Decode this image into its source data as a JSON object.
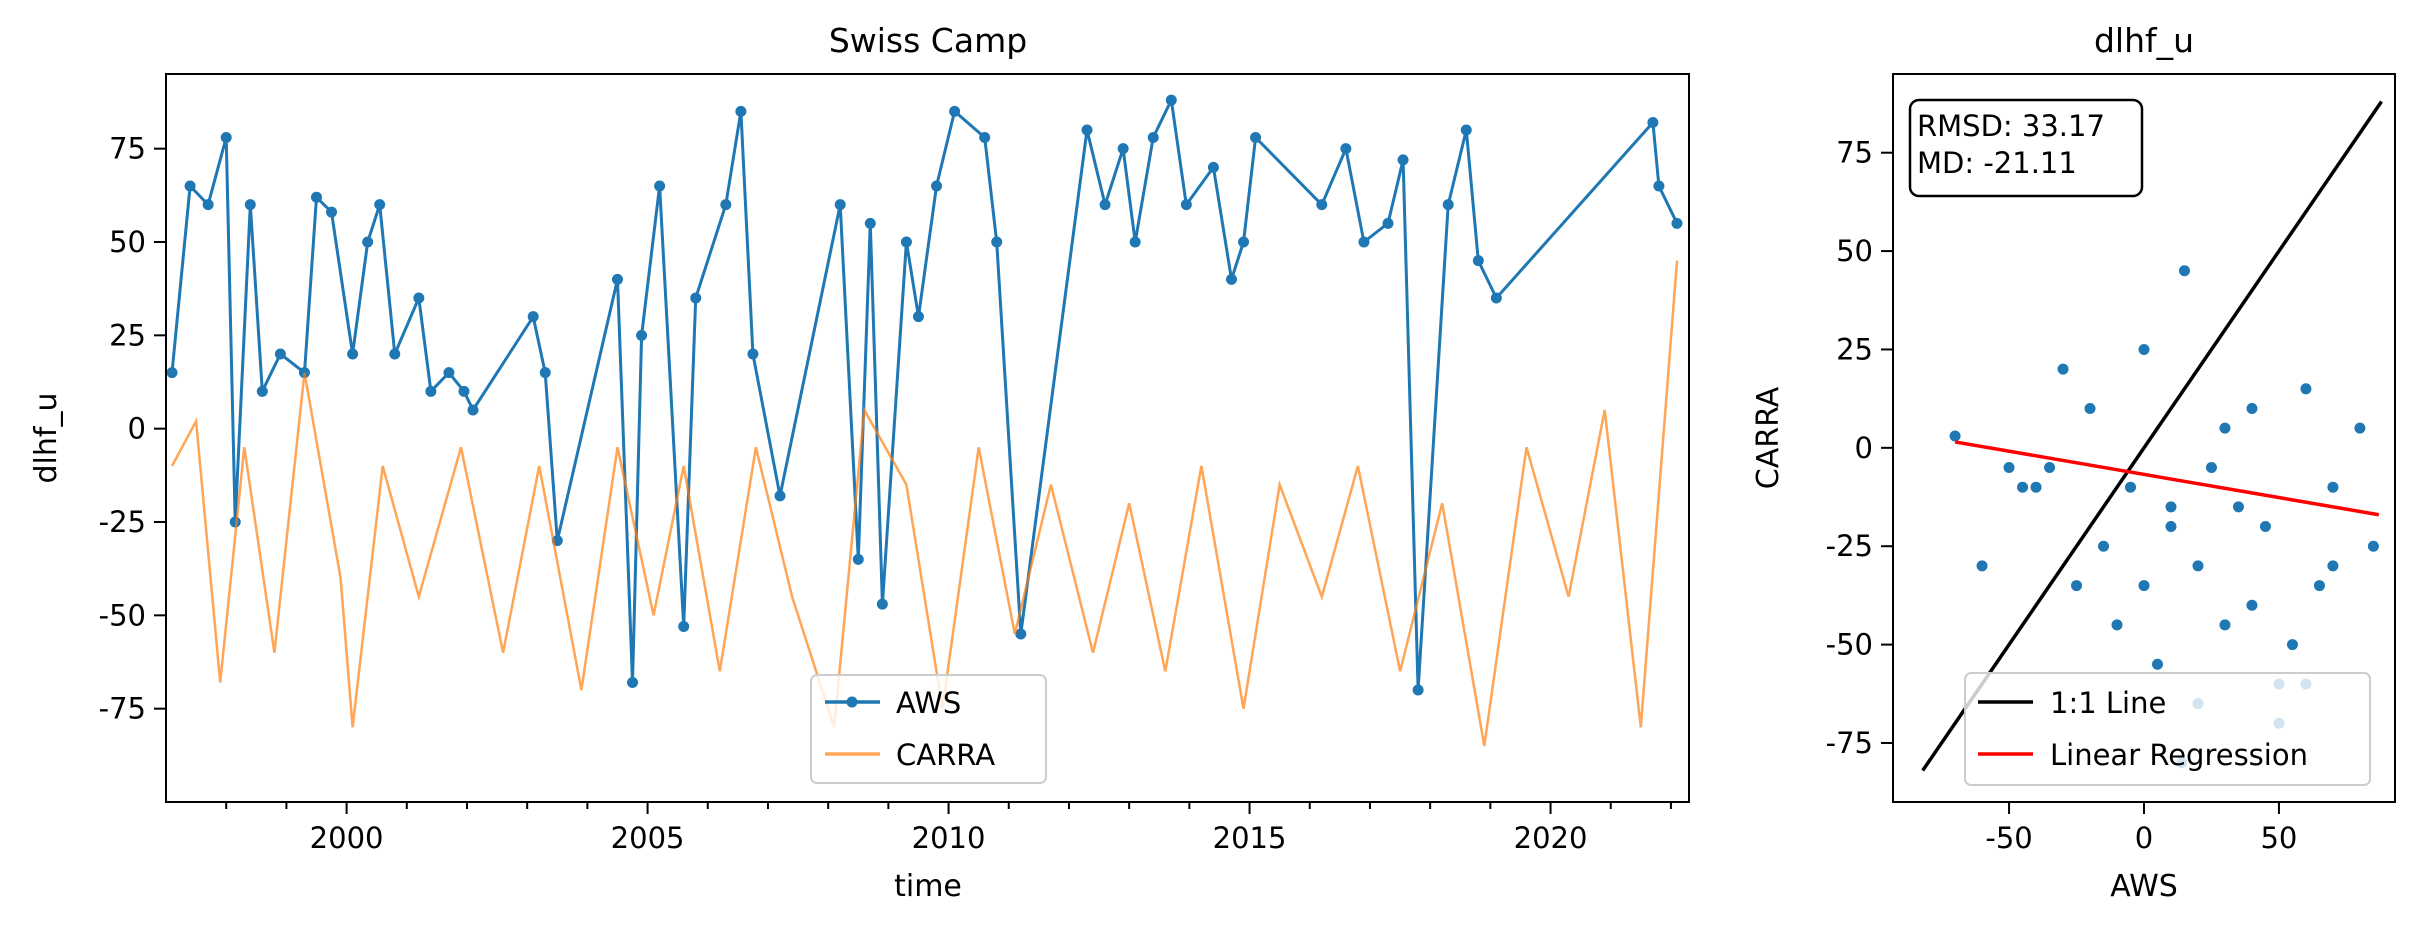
{
  "chart_data": [
    {
      "type": "line",
      "title": "Swiss Camp",
      "xlabel": "time",
      "ylabel": "dlhf_u",
      "xlim": [
        1997.0,
        2022.3
      ],
      "ylim": [
        -100,
        95
      ],
      "x_ticks": [
        2000,
        2005,
        2010,
        2015,
        2020
      ],
      "y_ticks": [
        -75,
        -50,
        -25,
        0,
        25,
        50,
        75
      ],
      "legend_position": "bottom-center",
      "series": [
        {
          "name": "AWS",
          "color": "#1f77b4",
          "marker": "circle",
          "x": [
            1997.1,
            1997.4,
            1997.7,
            1998.0,
            1998.15,
            1998.4,
            1998.6,
            1998.9,
            1999.3,
            1999.5,
            1999.75,
            2000.1,
            2000.35,
            2000.55,
            2000.8,
            2001.2,
            2001.4,
            2001.7,
            2001.95,
            2002.1,
            2003.1,
            2003.3,
            2003.5,
            2004.5,
            2004.75,
            2004.9,
            2005.2,
            2005.6,
            2005.8,
            2006.3,
            2006.55,
            2006.75,
            2007.2,
            2008.2,
            2008.5,
            2008.7,
            2008.9,
            2009.3,
            2009.5,
            2009.8,
            2010.1,
            2010.6,
            2010.8,
            2011.2,
            2012.3,
            2012.6,
            2012.9,
            2013.1,
            2013.4,
            2013.7,
            2013.95,
            2014.4,
            2014.7,
            2014.9,
            2015.1,
            2016.2,
            2016.6,
            2016.9,
            2017.3,
            2017.55,
            2017.8,
            2018.3,
            2018.6,
            2018.8,
            2019.1,
            2021.7,
            2021.8,
            2022.1
          ],
          "y": [
            15,
            65,
            60,
            78,
            -25,
            60,
            10,
            20,
            15,
            62,
            58,
            20,
            50,
            60,
            20,
            35,
            10,
            15,
            10,
            5,
            30,
            15,
            -30,
            40,
            -68,
            25,
            65,
            -53,
            35,
            60,
            85,
            20,
            -18,
            60,
            -35,
            55,
            -47,
            50,
            30,
            65,
            85,
            78,
            50,
            -55,
            80,
            60,
            75,
            50,
            78,
            88,
            60,
            70,
            40,
            50,
            78,
            60,
            75,
            50,
            55,
            72,
            -70,
            60,
            80,
            45,
            35,
            82,
            65,
            55
          ]
        },
        {
          "name": "CARRA",
          "color": "#ff7f0e",
          "x": [
            1997.1,
            1997.5,
            1997.9,
            1998.3,
            1998.8,
            1999.3,
            1999.9,
            2000.1,
            2000.6,
            2001.2,
            2001.9,
            2002.6,
            2003.2,
            2003.9,
            2004.5,
            2005.1,
            2005.6,
            2006.2,
            2006.8,
            2007.4,
            2008.1,
            2008.6,
            2009.3,
            2009.9,
            2010.5,
            2011.1,
            2011.7,
            2012.4,
            2013.0,
            2013.6,
            2014.2,
            2014.9,
            2015.5,
            2016.2,
            2016.8,
            2017.5,
            2018.2,
            2018.9,
            2019.6,
            2020.3,
            2020.9,
            2021.5,
            2022.1
          ],
          "y": [
            -10,
            2,
            -68,
            -5,
            -60,
            15,
            -40,
            -80,
            -10,
            -45,
            -5,
            -60,
            -10,
            -70,
            -5,
            -50,
            -10,
            -65,
            -5,
            -45,
            -80,
            5,
            -15,
            -75,
            -5,
            -55,
            -15,
            -60,
            -20,
            -65,
            -10,
            -75,
            -15,
            -45,
            -10,
            -65,
            -20,
            -85,
            -5,
            -45,
            5,
            -80,
            45
          ]
        }
      ]
    },
    {
      "type": "scatter",
      "title": "dlhf_u",
      "xlabel": "AWS",
      "ylabel": "CARRA",
      "xlim": [
        -93,
        93
      ],
      "ylim": [
        -90,
        95
      ],
      "x_ticks": [
        -50,
        0,
        50
      ],
      "y_ticks": [
        -75,
        -50,
        -25,
        0,
        25,
        50,
        75
      ],
      "stats": [
        "RMSD: 33.17",
        "MD: -21.11"
      ],
      "legend_position": "bottom-right",
      "points_color": "#1f77b4",
      "points_x": [
        -70,
        -60,
        -45,
        -30,
        -20,
        -10,
        0,
        10,
        20,
        30,
        40,
        50,
        60,
        70,
        80,
        85,
        -50,
        -25,
        15,
        35,
        55,
        -5,
        25,
        45,
        65,
        14,
        50,
        60,
        5,
        -15,
        30,
        -35,
        10,
        40,
        70,
        20,
        0,
        -40
      ],
      "points_y": [
        3,
        -30,
        -10,
        20,
        10,
        -45,
        25,
        -20,
        -30,
        5,
        -40,
        -70,
        -60,
        -10,
        5,
        -25,
        -5,
        -35,
        45,
        -15,
        -50,
        -10,
        -5,
        -20,
        -35,
        -80,
        -60,
        15,
        -55,
        -25,
        -45,
        -5,
        -15,
        10,
        -30,
        -65,
        -35,
        -10
      ],
      "series": [
        {
          "name": "1:1 Line",
          "color": "#000000",
          "x": [
            -82,
            88
          ],
          "y": [
            -82,
            88
          ]
        },
        {
          "name": "Linear Regression",
          "color": "#ff0000",
          "x": [
            -70,
            87
          ],
          "y": [
            1.5,
            -17
          ]
        }
      ]
    }
  ]
}
